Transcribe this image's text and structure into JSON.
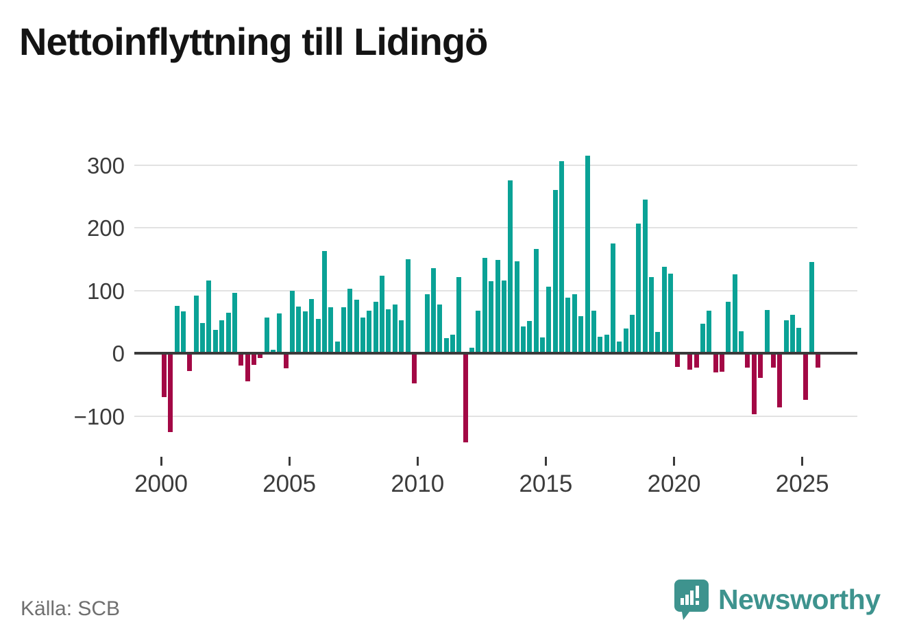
{
  "title": "Nettoinflyttning till Lidingö",
  "source": "Källa: SCB",
  "branding": {
    "name": "Newsworthy",
    "logo_icon": "newsworthy-speech-bubble-bar-chart-icon",
    "color": "#3e938e"
  },
  "chart_data": {
    "type": "bar",
    "title": "Nettoinflyttning till Lidingö",
    "frequency": "quarterly",
    "start": "2000-Q1",
    "end": "2025-Q3",
    "values": [
      -70,
      -126,
      75,
      67,
      -28,
      92,
      48,
      116,
      37,
      53,
      64,
      96,
      -20,
      -45,
      -19,
      -8,
      57,
      6,
      63,
      -24,
      100,
      74,
      67,
      86,
      55,
      163,
      73,
      19,
      73,
      103,
      85,
      57,
      68,
      82,
      123,
      70,
      78,
      53,
      150,
      -48,
      0,
      94,
      136,
      78,
      24,
      29,
      121,
      -142,
      9,
      68,
      152,
      115,
      149,
      116,
      275,
      146,
      43,
      51,
      166,
      25,
      106,
      260,
      306,
      89,
      94,
      59,
      315,
      68,
      26,
      30,
      175,
      19,
      39,
      61,
      207,
      245,
      121,
      34,
      138,
      127,
      -22,
      2,
      -26,
      -23,
      47,
      68,
      -31,
      -29,
      82,
      126,
      35,
      -23,
      -97,
      -39,
      69,
      -23,
      -86,
      52,
      61,
      40,
      -74,
      145,
      -23
    ],
    "y_ticks": [
      300,
      200,
      100,
      0,
      -100
    ],
    "y_tick_labels": [
      "300",
      "200",
      "100",
      "0",
      "−100"
    ],
    "x_tick_years": [
      2000,
      2005,
      2010,
      2015,
      2020,
      2025
    ],
    "x_tick_labels": [
      "2000",
      "2005",
      "2010",
      "2015",
      "2020",
      "2025"
    ],
    "ylim": [
      -150,
      330
    ],
    "grid": true,
    "legend": "none",
    "positive_color": "#0aa296",
    "negative_color": "#a30845"
  }
}
